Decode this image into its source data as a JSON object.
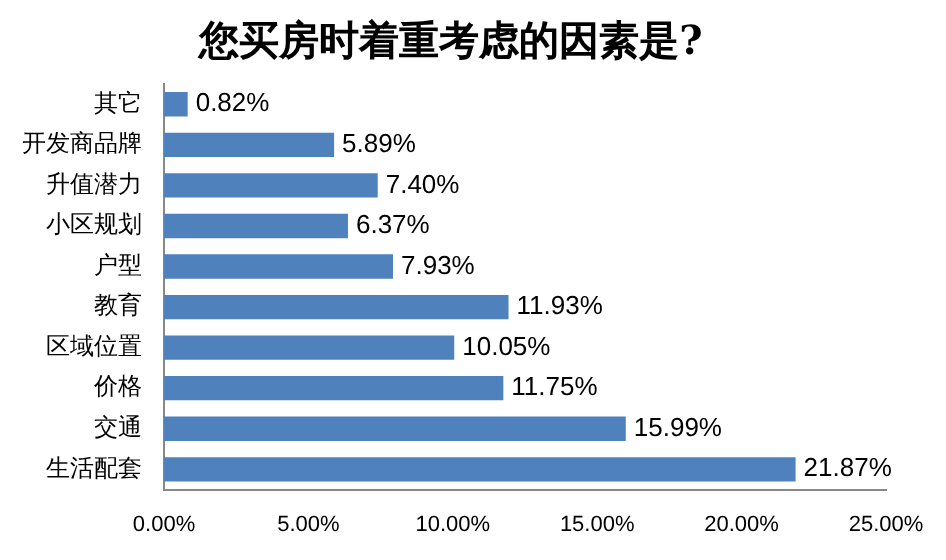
{
  "chart_data": {
    "type": "bar",
    "orientation": "horizontal",
    "title": "您买房时着重考虑的因素是?",
    "categories": [
      "其它",
      "开发商品牌",
      "升值潜力",
      "小区规划",
      "户型",
      "教育",
      "区域位置",
      "价格",
      "交通",
      "生活配套"
    ],
    "values": [
      0.82,
      5.89,
      7.4,
      6.37,
      7.93,
      11.93,
      10.05,
      11.75,
      15.99,
      21.87
    ],
    "value_labels": [
      "0.82%",
      "5.89%",
      "7.40%",
      "6.37%",
      "7.93%",
      "11.93%",
      "10.05%",
      "11.75%",
      "15.99%",
      "21.87%"
    ],
    "color": "#4f81bd",
    "xlim": [
      0,
      25
    ],
    "xticks": [
      {
        "value": 0,
        "label": "0.00%"
      },
      {
        "value": 5,
        "label": "5.00%"
      },
      {
        "value": 10,
        "label": "10.00%"
      },
      {
        "value": 15,
        "label": "15.00%"
      },
      {
        "value": 20,
        "label": "20.00%"
      },
      {
        "value": 25,
        "label": "25.00%"
      }
    ],
    "grid": false,
    "legend": false
  }
}
